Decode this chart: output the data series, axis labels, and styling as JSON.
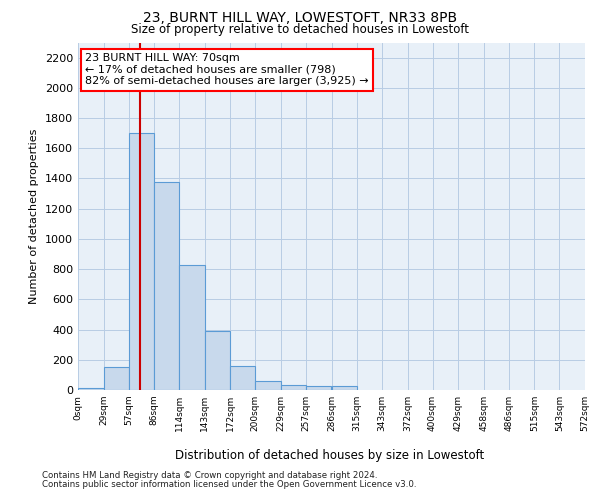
{
  "title": "23, BURNT HILL WAY, LOWESTOFT, NR33 8PB",
  "subtitle": "Size of property relative to detached houses in Lowestoft",
  "xlabel": "Distribution of detached houses by size in Lowestoft",
  "ylabel": "Number of detached properties",
  "bar_color": "#c8d9ec",
  "bar_edge_color": "#5b9bd5",
  "grid_color": "#b8cce4",
  "bg_color": "#e8f0f8",
  "redline_color": "#cc0000",
  "annotation_text": "23 BURNT HILL WAY: 70sqm\n← 17% of detached houses are smaller (798)\n82% of semi-detached houses are larger (3,925) →",
  "footer1": "Contains HM Land Registry data © Crown copyright and database right 2024.",
  "footer2": "Contains public sector information licensed under the Open Government Licence v3.0.",
  "bin_edges": [
    0,
    29,
    57,
    86,
    114,
    143,
    172,
    200,
    229,
    257,
    286,
    315,
    343,
    372,
    400,
    429,
    458,
    486,
    515,
    543,
    572
  ],
  "bin_labels": [
    "0sqm",
    "29sqm",
    "57sqm",
    "86sqm",
    "114sqm",
    "143sqm",
    "172sqm",
    "200sqm",
    "229sqm",
    "257sqm",
    "286sqm",
    "315sqm",
    "343sqm",
    "372sqm",
    "400sqm",
    "429sqm",
    "458sqm",
    "486sqm",
    "515sqm",
    "543sqm",
    "572sqm"
  ],
  "bar_heights": [
    10,
    150,
    1700,
    1380,
    830,
    390,
    160,
    60,
    30,
    25,
    25,
    0,
    0,
    0,
    0,
    0,
    0,
    0,
    0,
    0
  ],
  "ylim": [
    0,
    2300
  ],
  "yticks": [
    0,
    200,
    400,
    600,
    800,
    1000,
    1200,
    1400,
    1600,
    1800,
    2000,
    2200
  ],
  "redline_x": 70
}
